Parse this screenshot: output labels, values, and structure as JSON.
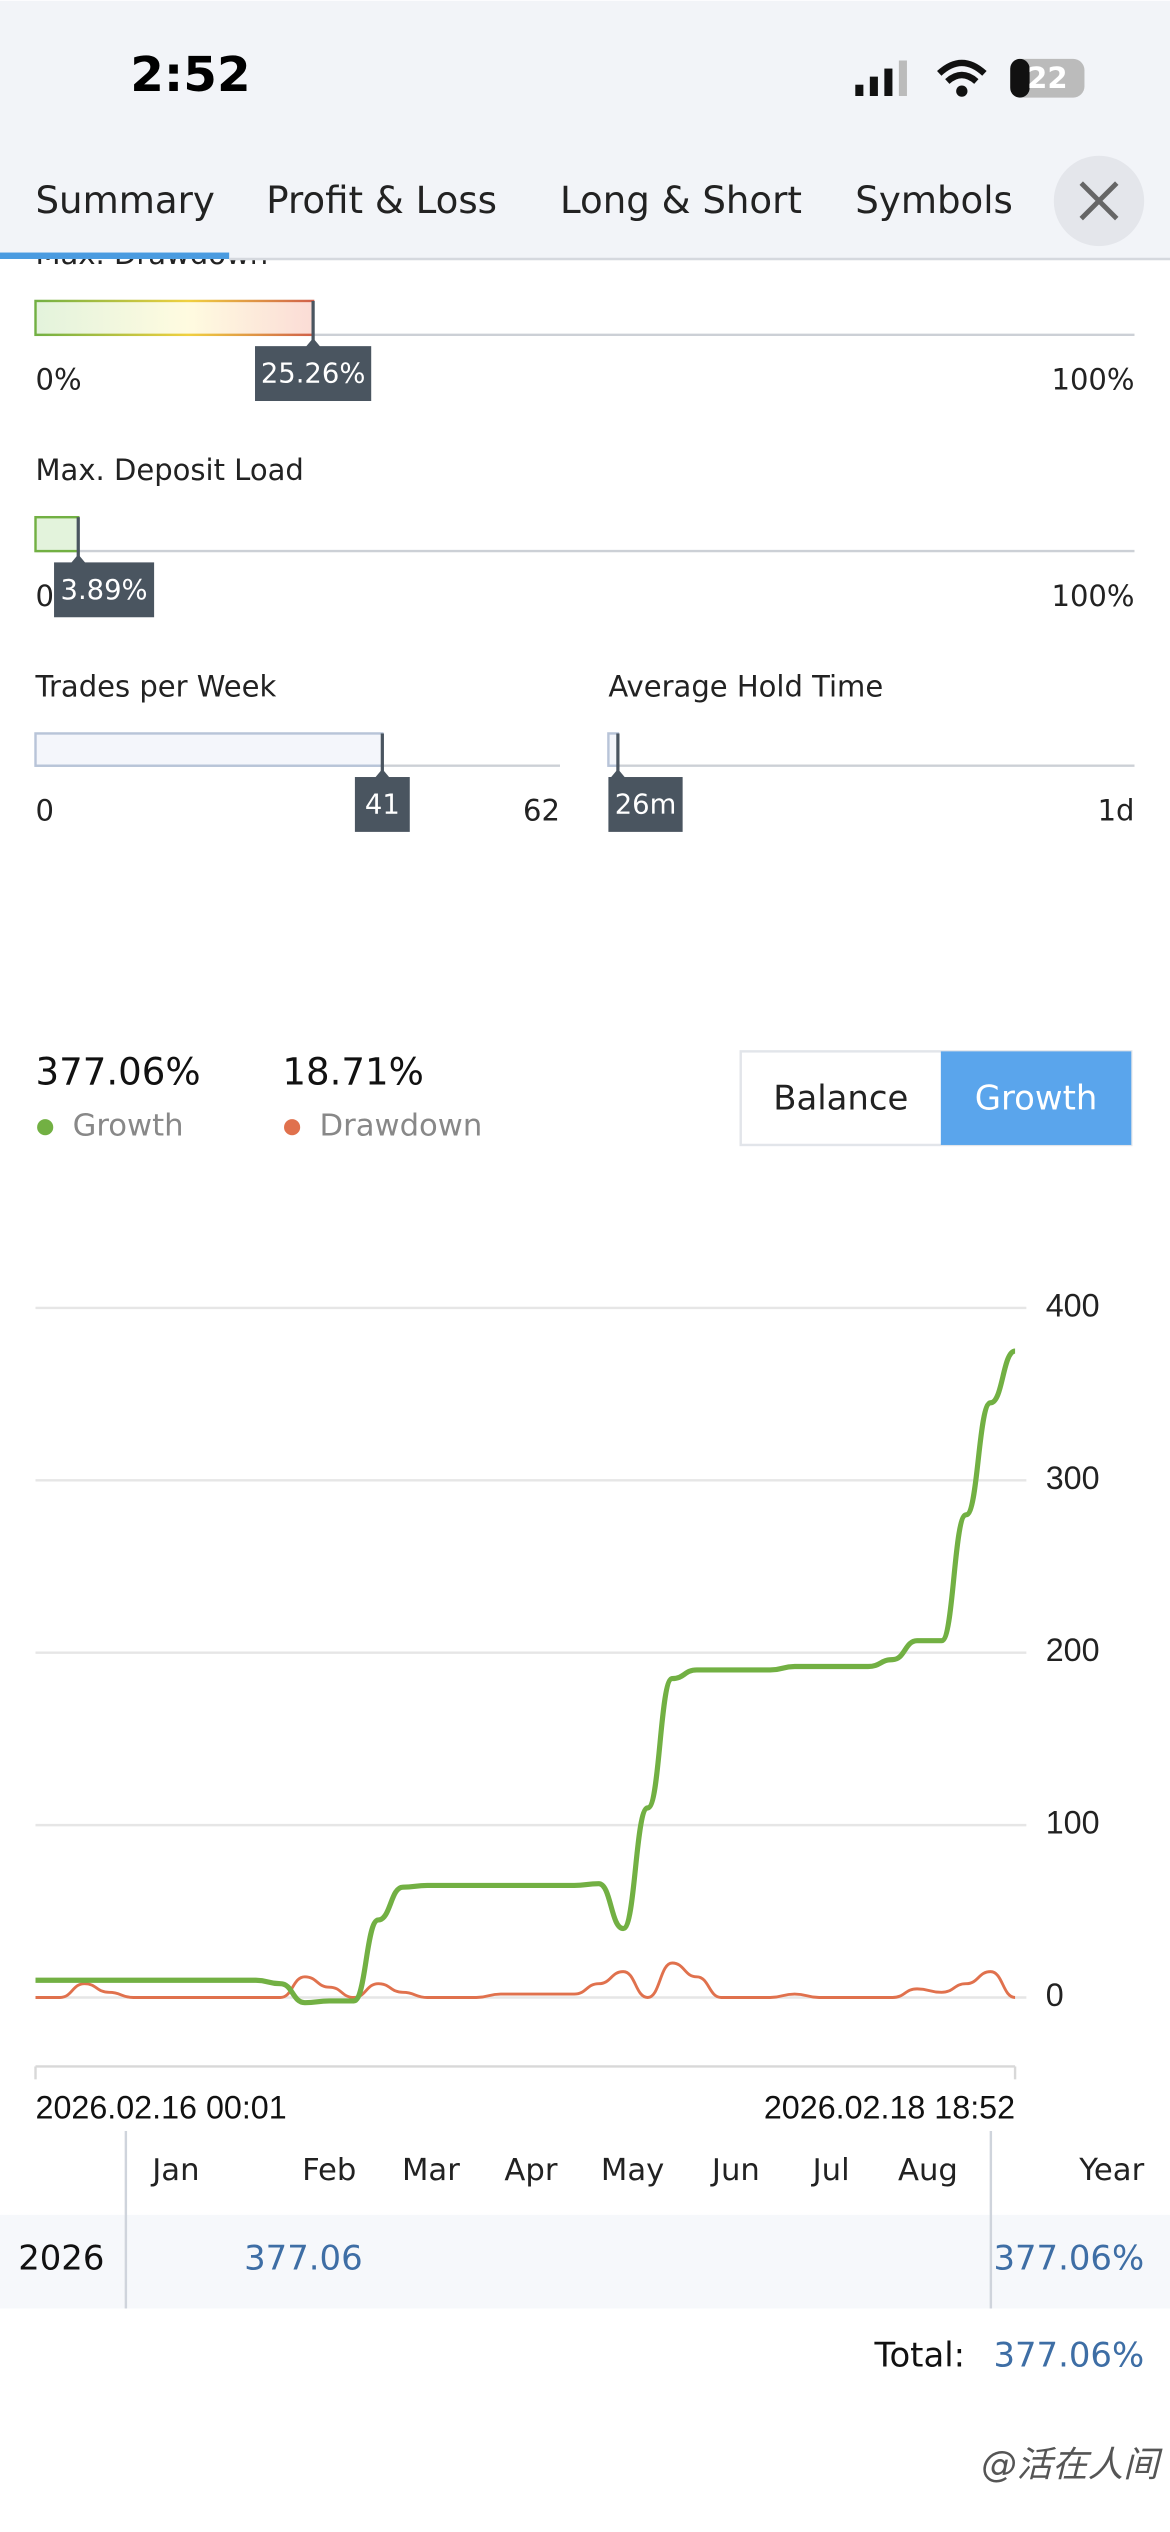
{
  "status_bar": {
    "time": "2:52",
    "battery": "22"
  },
  "tabs": [
    "Summary",
    "Profit & Loss",
    "Long & Short",
    "Symbols"
  ],
  "metrics": {
    "max_drawdown": {
      "label": "Max. Drawdown",
      "value": {
        "value": 25.26,
        "label": "25.26%"
      },
      "min": {
        "value": 0,
        "label": "0%"
      },
      "max": {
        "value": 100,
        "label": "100%"
      }
    },
    "max_deposit_load": {
      "label": "Max. Deposit Load",
      "value": {
        "value": 3.89,
        "label": "3.89%"
      },
      "min": {
        "value": 0,
        "label": "0"
      },
      "max": {
        "value": 100,
        "label": "100%"
      }
    },
    "trades_per_week": {
      "label": "Trades per Week",
      "value": 41,
      "min": 0,
      "max": 62
    },
    "average_hold_time": {
      "label": "Average Hold Time",
      "value": {
        "value": 26,
        "label": "26m"
      },
      "max": {
        "value": 1440,
        "label": "1d"
      }
    }
  },
  "summary": {
    "growth": {
      "value": "377.06%",
      "label": "Growth"
    },
    "drawdown": {
      "value": "18.71%",
      "label": "Drawdown"
    }
  },
  "toggle": {
    "options": [
      "Balance",
      "Growth"
    ],
    "active": 1
  },
  "chart_data": {
    "type": "line",
    "x_labels": [
      "2026.02.16 00:01",
      "2026.02.18 18:52"
    ],
    "ylim": [
      -40,
      400
    ],
    "yticks": [
      0,
      100,
      200,
      300,
      400
    ],
    "grid": true,
    "series": [
      {
        "name": "Growth",
        "color": "#72b043",
        "values": [
          10,
          10,
          10,
          10,
          10,
          10,
          10,
          10,
          10,
          10,
          8,
          -3,
          -2,
          -2,
          45,
          64,
          65,
          65,
          65,
          65,
          65,
          65,
          65,
          66,
          40,
          110,
          185,
          190,
          190,
          190,
          190,
          192,
          192,
          192,
          192,
          196,
          207,
          207,
          280,
          345,
          375
        ]
      },
      {
        "name": "Drawdown",
        "color": "#e0714d",
        "values": [
          0,
          0,
          8,
          3,
          0,
          0,
          0,
          0,
          0,
          0,
          0,
          12,
          6,
          0,
          8,
          3,
          0,
          0,
          0,
          2,
          2,
          2,
          2,
          8,
          15,
          0,
          20,
          12,
          0,
          0,
          0,
          2,
          0,
          0,
          0,
          0,
          5,
          3,
          8,
          15,
          0
        ]
      }
    ]
  },
  "table": {
    "columns": [
      "Jan",
      "Feb",
      "Mar",
      "Apr",
      "May",
      "Jun",
      "Jul",
      "Aug",
      "Year"
    ],
    "rows": [
      {
        "year": "2026",
        "months": [
          null,
          "377.06",
          null,
          null,
          null,
          null,
          null,
          null
        ],
        "total": "377.06%"
      }
    ],
    "total_label": "Total:",
    "total_value": "377.06%"
  },
  "watermark": "@活在人间"
}
